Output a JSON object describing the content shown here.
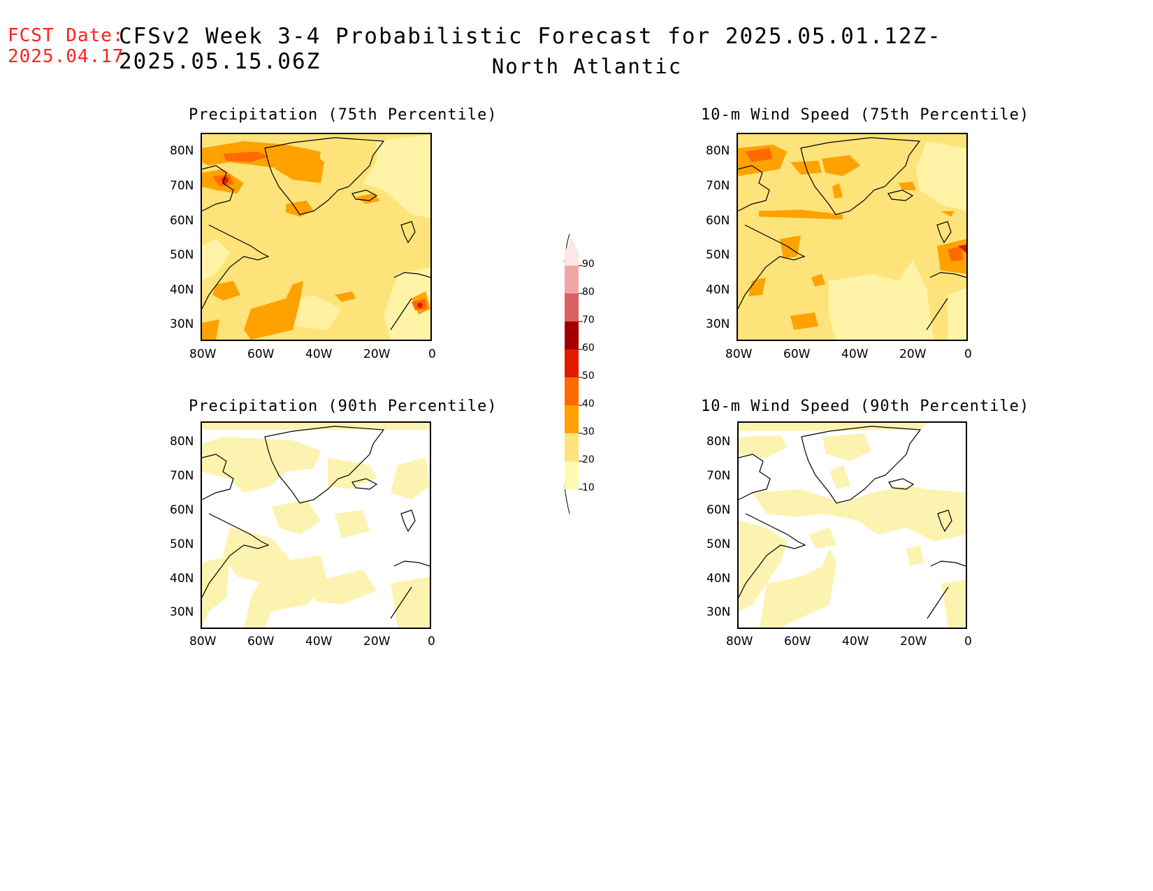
{
  "header": {
    "fcst_label": "FCST Date:",
    "fcst_date": "2025.04.17",
    "title": "CFSv2 Week 3-4 Probabilistic Forecast for 2025.05.01.12Z-2025.05.15.06Z",
    "region": "North Atlantic"
  },
  "panels": [
    {
      "id": "precip75",
      "title": "Precipitation (75th Percentile)"
    },
    {
      "id": "wind75",
      "title": "10-m Wind Speed (75th Percentile)"
    },
    {
      "id": "precip90",
      "title": "Precipitation (90th Percentile)"
    },
    {
      "id": "wind90",
      "title": "10-m Wind Speed (90th Percentile)"
    }
  ],
  "axes": {
    "lat_labels": [
      "80N",
      "70N",
      "60N",
      "50N",
      "40N",
      "30N"
    ],
    "lon_labels": [
      "80W",
      "60W",
      "40W",
      "20W",
      "0"
    ]
  },
  "colorbar": {
    "levels": [
      "10",
      "20",
      "30",
      "40",
      "50",
      "60",
      "70",
      "80",
      "90"
    ],
    "colors": [
      "#fff9b0",
      "#fde37a",
      "#ffa200",
      "#ff6a00",
      "#e31a00",
      "#a40000",
      "#d96060",
      "#f3a6a6",
      "#fde5e8"
    ]
  },
  "colors": {
    "title_red": "#ff2020",
    "low": "#fdf0a6",
    "mid": "#fde37a",
    "orange": "#ffa200",
    "dark_orange": "#ff6a00",
    "red": "#e31a00"
  }
}
